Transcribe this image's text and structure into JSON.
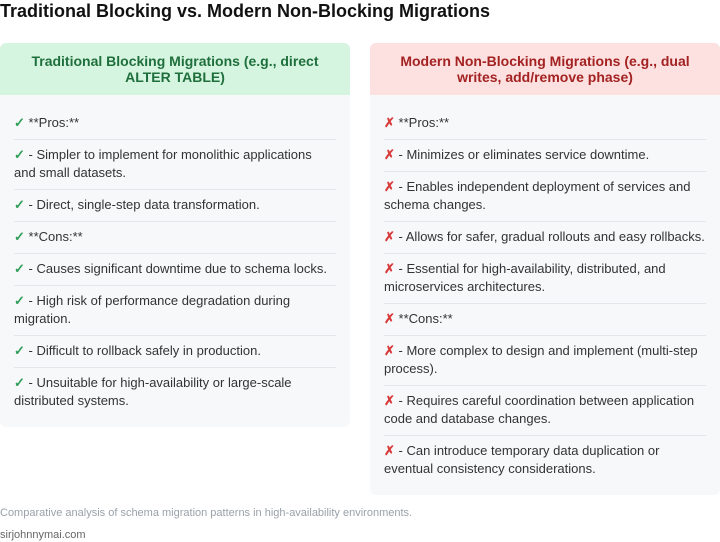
{
  "title": "Traditional Blocking vs. Modern Non-Blocking Migrations",
  "columns": [
    {
      "header": "Traditional Blocking Migrations (e.g., direct ALTER TABLE)",
      "mark": "✓",
      "mark_icon": "check-icon",
      "accent_color": "#2e9d57",
      "header_bg": "#d6f5e0",
      "items": [
        "**Pros:**",
        "- Simpler to implement for monolithic applications and small datasets.",
        "- Direct, single-step data transformation.",
        "**Cons:**",
        "- Causes significant downtime due to schema locks.",
        "- High risk of performance degradation during migration.",
        "- Difficult to rollback safely in production.",
        "- Unsuitable for high-availability or large-scale distributed systems."
      ]
    },
    {
      "header": "Modern Non-Blocking Migrations (e.g., dual writes, add/remove phase)",
      "mark": "✗",
      "mark_icon": "cross-icon",
      "accent_color": "#d93a3a",
      "header_bg": "#fde0e0",
      "items": [
        "**Pros:**",
        "- Minimizes or eliminates service downtime.",
        "- Enables independent deployment of services and schema changes.",
        "- Allows for safer, gradual rollouts and easy rollbacks.",
        "- Essential for high-availability, distributed, and microservices architectures.",
        "**Cons:**",
        "- More complex to design and implement (multi-step process).",
        "- Requires careful coordination between application code and database changes.",
        "- Can introduce temporary data duplication or eventual consistency considerations."
      ]
    }
  ],
  "caption": "Comparative analysis of schema migration patterns in high-availability environments.",
  "attribution": "sirjohnnymai.com"
}
